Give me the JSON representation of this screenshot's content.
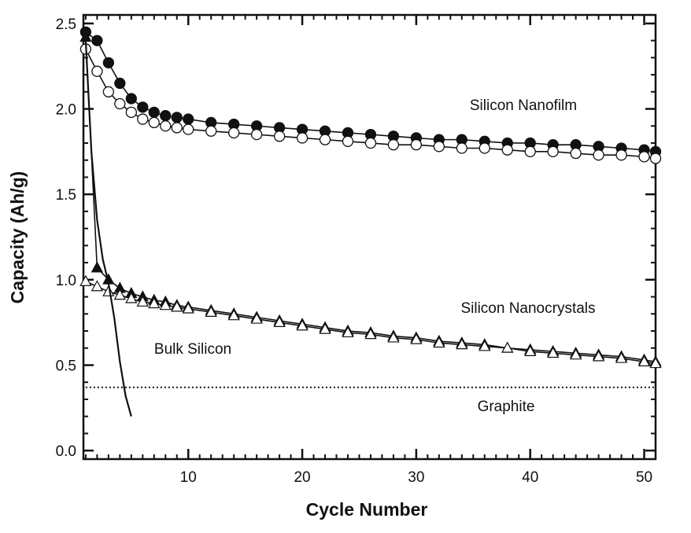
{
  "chart_data": {
    "type": "line",
    "title": "",
    "xlabel": "Cycle Number",
    "ylabel": "Capacity (Ah/g)",
    "xlim": [
      0.8,
      51
    ],
    "ylim": [
      -0.05,
      2.55
    ],
    "xticks": [
      10,
      20,
      30,
      40,
      50
    ],
    "yticks": [
      0.0,
      0.5,
      1.0,
      1.5,
      2.0,
      2.5
    ],
    "ytick_labels": [
      "0.0",
      "0.5",
      "1.0",
      "1.5",
      "2.0",
      "2.5"
    ],
    "grid": false,
    "annotations": [
      {
        "text": "Silicon Nanofilm",
        "x": 30.5,
        "y": 2.05
      },
      {
        "text": "Silicon Nanocrystals",
        "x": 31,
        "y": 0.84
      },
      {
        "text": "Bulk Silicon",
        "x": 9,
        "y": 0.58
      },
      {
        "text": "Graphite",
        "x": 37.5,
        "y": 0.24
      }
    ],
    "series": [
      {
        "marker": "filled-circle",
        "x": [
          1,
          2,
          3,
          4,
          5,
          6,
          7,
          8,
          9,
          10,
          12,
          14,
          16,
          18,
          20,
          22,
          24,
          26,
          28,
          30,
          32,
          34,
          36,
          38,
          40,
          42,
          44,
          46,
          48,
          50,
          51
        ],
        "values": [
          2.45,
          2.4,
          2.27,
          2.15,
          2.06,
          2.01,
          1.98,
          1.96,
          1.95,
          1.94,
          1.92,
          1.91,
          1.9,
          1.89,
          1.88,
          1.87,
          1.86,
          1.85,
          1.84,
          1.83,
          1.82,
          1.82,
          1.81,
          1.8,
          1.8,
          1.79,
          1.79,
          1.78,
          1.77,
          1.76,
          1.75
        ]
      },
      {
        "marker": "open-circle",
        "x": [
          1,
          2,
          3,
          4,
          5,
          6,
          7,
          8,
          9,
          10,
          12,
          14,
          16,
          18,
          20,
          22,
          24,
          26,
          28,
          30,
          32,
          34,
          36,
          38,
          40,
          42,
          44,
          46,
          48,
          50,
          51
        ],
        "values": [
          2.35,
          2.22,
          2.1,
          2.03,
          1.98,
          1.94,
          1.92,
          1.9,
          1.89,
          1.88,
          1.87,
          1.86,
          1.85,
          1.84,
          1.83,
          1.82,
          1.81,
          1.8,
          1.79,
          1.79,
          1.78,
          1.77,
          1.77,
          1.76,
          1.75,
          1.75,
          1.74,
          1.73,
          1.73,
          1.72,
          1.71
        ]
      },
      {
        "marker": "filled-triangle",
        "x": [
          1,
          2,
          3,
          4,
          5,
          6,
          7,
          8,
          9,
          10,
          12,
          14,
          16,
          18,
          20,
          22,
          24,
          26,
          28,
          30,
          32,
          34,
          36,
          38,
          40,
          42,
          44,
          46,
          48,
          50,
          51
        ],
        "values": [
          2.42,
          1.07,
          1.0,
          0.95,
          0.92,
          0.9,
          0.88,
          0.87,
          0.85,
          0.84,
          0.82,
          0.8,
          0.78,
          0.76,
          0.74,
          0.72,
          0.7,
          0.69,
          0.67,
          0.66,
          0.64,
          0.63,
          0.62,
          0.6,
          0.59,
          0.58,
          0.57,
          0.56,
          0.55,
          0.53,
          0.52
        ]
      },
      {
        "marker": "open-triangle",
        "x": [
          1,
          2,
          3,
          4,
          5,
          6,
          7,
          8,
          9,
          10,
          12,
          14,
          16,
          18,
          20,
          22,
          24,
          26,
          28,
          30,
          32,
          34,
          36,
          38,
          40,
          42,
          44,
          46,
          48,
          50,
          51
        ],
        "values": [
          0.99,
          0.96,
          0.93,
          0.91,
          0.89,
          0.87,
          0.86,
          0.85,
          0.84,
          0.83,
          0.81,
          0.79,
          0.77,
          0.75,
          0.73,
          0.71,
          0.69,
          0.68,
          0.66,
          0.65,
          0.63,
          0.62,
          0.61,
          0.6,
          0.58,
          0.57,
          0.56,
          0.55,
          0.54,
          0.52,
          0.51
        ]
      },
      {
        "marker": "line",
        "x": [
          1,
          1.5,
          2,
          2.5,
          3,
          3.5,
          4,
          4.5,
          5
        ],
        "values": [
          2.4,
          1.75,
          1.35,
          1.12,
          0.98,
          0.78,
          0.52,
          0.32,
          0.2
        ]
      },
      {
        "marker": "dotted-line",
        "x": [
          1,
          51
        ],
        "values": [
          0.37,
          0.37
        ]
      }
    ]
  }
}
